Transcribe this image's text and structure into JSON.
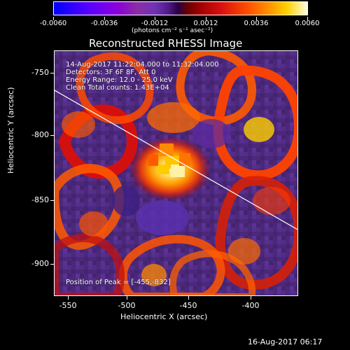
{
  "figure": {
    "title": "Reconstructed RHESSI Image",
    "footer": "16-Aug-2017 06:17",
    "colorbar": {
      "ticks": [
        "-0.0060",
        "-0.0036",
        "-0.0012",
        "0.0012",
        "0.0036",
        "0.0060"
      ],
      "unit": "(photons cm⁻² s⁻¹ asec⁻²)",
      "colors": {
        "low": "#0000ff",
        "mid_low": "#8a00d8",
        "mid": "#4f2a80",
        "mid_high": "#d71010",
        "high": "#fffde0"
      }
    },
    "annotations": [
      "14-Aug-2017 11:22:04.000 to 11:32:04.000",
      "Detectors: 3F 6F 8F, Att 0",
      "Energy Range: 12.0 - 25.0 keV",
      "Clean      Total counts: 1.43E+04"
    ],
    "peak_text": "Position of Peak = [-455,-832]",
    "x_label": "Heliocentric X (arcsec)",
    "y_label": "Heliocentric Y (arcsec)",
    "x_ticks": [
      "-550",
      "-500",
      "-450",
      "-400"
    ],
    "y_ticks": [
      "-750",
      "-800",
      "-850",
      "-900"
    ]
  },
  "chart_data": {
    "type": "heatmap",
    "title": "Reconstructed RHESSI Image",
    "xlabel": "Heliocentric X (arcsec)",
    "ylabel": "Heliocentric Y (arcsec)",
    "xlim": [
      -557,
      -366
    ],
    "ylim": [
      -925,
      -735
    ],
    "x_ticks": [
      -550,
      -500,
      -450,
      -400
    ],
    "y_ticks": [
      -750,
      -800,
      -850,
      -900
    ],
    "colorbar": {
      "min": -0.006,
      "max": 0.006,
      "ticks": [
        -0.006,
        -0.0036,
        -0.0012,
        0.0012,
        0.0036,
        0.006
      ],
      "label": "(photons cm⁻² s⁻¹ asec⁻²)"
    },
    "peak": {
      "x": -455,
      "y": -832
    },
    "limb_line": [
      {
        "x": -557,
        "y": -771
      },
      {
        "x": -366,
        "y": -873
      }
    ],
    "time_range": "14-Aug-2017 11:22:04.000 to 11:32:04.000",
    "detectors": "3F 6F 8F, Att 0",
    "energy_range_keV": [
      12.0,
      25.0
    ],
    "method": "Clean",
    "total_counts": "1.43E+04"
  }
}
